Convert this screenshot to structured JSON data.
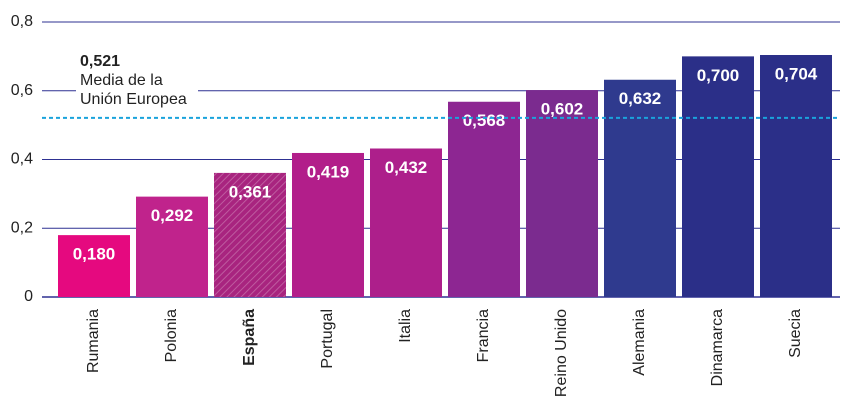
{
  "chart_data": {
    "type": "bar",
    "categories": [
      "Rumania",
      "Polonia",
      "España",
      "Portugal",
      "Italia",
      "Francia",
      "Reino Unido",
      "Alemania",
      "Dinamarca",
      "Suecia"
    ],
    "values": [
      0.18,
      0.292,
      0.361,
      0.419,
      0.432,
      0.568,
      0.602,
      0.632,
      0.7,
      0.704
    ],
    "value_labels": [
      "0,180",
      "0,292",
      "0,361",
      "0,419",
      "0,432",
      "0,568",
      "0,602",
      "0,632",
      "0,700",
      "0,704"
    ],
    "colors": [
      "#e5097f",
      "#c0238c",
      "#a8247f",
      "#b21e8a",
      "#ad1f8b",
      "#8d2692",
      "#7b2b8f",
      "#2f3a8e",
      "#2b2f88",
      "#2b2f88"
    ],
    "highlight": "España",
    "ylim": [
      0,
      0.8
    ],
    "yticks": [
      0,
      {
        "value": 0.2,
        "label": "0,2"
      },
      {
        "value": 0.4,
        "label": "0,4"
      },
      {
        "value": 0.6,
        "label": "0,6"
      },
      {
        "value": 0.8,
        "label": "0,8"
      }
    ],
    "grid": true,
    "reference_line": {
      "value": 0.521,
      "label": "0,521",
      "text": [
        "Media de la",
        "Unión Europea"
      ],
      "color": "#1aa3dc"
    }
  }
}
